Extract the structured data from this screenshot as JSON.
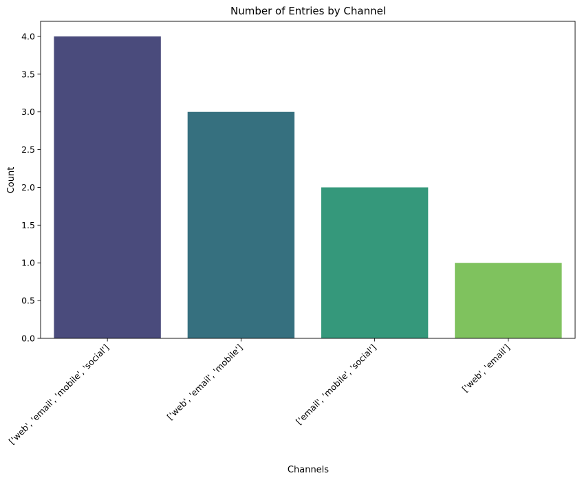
{
  "chart_data": {
    "type": "bar",
    "title": "Number of Entries by Channel",
    "xlabel": "Channels",
    "ylabel": "Count",
    "categories": [
      "['web', 'email', 'mobile', 'social']",
      "['web', 'email', 'mobile']",
      "['email', 'mobile', 'social']",
      "['web', 'email']"
    ],
    "values": [
      4,
      3,
      2,
      1
    ],
    "colors": [
      "#482878",
      "#26828e",
      "#1f9e89",
      "#6ece58"
    ],
    "bar_colors_rendered": [
      "#4a4b7c",
      "#36707f",
      "#35987b",
      "#7fc25e"
    ],
    "ylim": [
      0,
      4.2
    ],
    "yticks": [
      0.0,
      0.5,
      1.0,
      1.5,
      2.0,
      2.5,
      3.0,
      3.5,
      4.0
    ],
    "ytick_labels": [
      "0.0",
      "0.5",
      "1.0",
      "1.5",
      "2.0",
      "2.5",
      "3.0",
      "3.5",
      "4.0"
    ],
    "grid": false,
    "xtick_rotation_deg": 45
  }
}
